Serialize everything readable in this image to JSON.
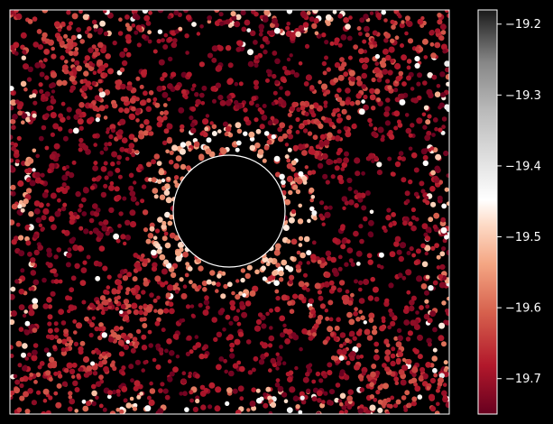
{
  "chart_data": {
    "type": "scatter",
    "title": "",
    "xlabel": "",
    "ylabel": "",
    "x_ticks_visible": false,
    "y_ticks_visible": false,
    "background": "#000000",
    "axes_frame_color": "#ffffff",
    "colormap": "RdGy",
    "colorbar": {
      "range": [
        -19.75,
        -19.18
      ],
      "ticks": [
        -19.2,
        -19.3,
        -19.4,
        -19.5,
        -19.6,
        -19.7
      ],
      "tick_labels": [
        "−19.2",
        "−19.3",
        "−19.4",
        "−19.5",
        "−19.6",
        "−19.7"
      ]
    },
    "features": {
      "central_mask": "circle",
      "mask_outline_color": "#ffffff",
      "pattern": "diagonal cross of brighter points along both diagonals with a bright ring around the central mask"
    }
  }
}
